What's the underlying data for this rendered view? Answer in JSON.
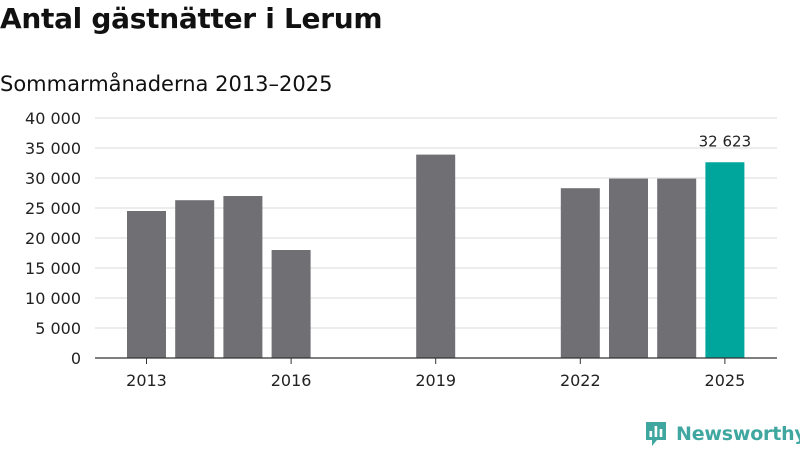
{
  "header": {
    "title": "Antal gästnätter i Lerum",
    "subtitle": "Sommarmånaderna 2013–2025"
  },
  "brand": {
    "name": "Newsworthy",
    "icon": "newsworthy-logo-icon"
  },
  "colors": {
    "bar": "#706f74",
    "highlight": "#00a59c",
    "grid": "#d9d9d9",
    "axis": "#333333",
    "brand": "#3fa7a0"
  },
  "chart_data": {
    "type": "bar",
    "title": "Antal gästnätter i Lerum",
    "subtitle": "Sommarmånaderna 2013–2025",
    "xlabel": "",
    "ylabel": "",
    "x": [
      2013,
      2014,
      2015,
      2016,
      2017,
      2018,
      2019,
      2020,
      2021,
      2022,
      2023,
      2024,
      2025
    ],
    "values": [
      24500,
      26300,
      27000,
      18000,
      null,
      null,
      33900,
      null,
      null,
      28300,
      29900,
      29900,
      32623
    ],
    "highlight_index": 12,
    "highlight_label": "32 623",
    "ylim": [
      0,
      40000
    ],
    "y_ticks": [
      0,
      5000,
      10000,
      15000,
      20000,
      25000,
      30000,
      35000,
      40000
    ],
    "y_tick_labels": [
      "0",
      "5 000",
      "10 000",
      "15 000",
      "20 000",
      "25 000",
      "30 000",
      "35 000",
      "40 000"
    ],
    "x_tick_labels": [
      "2013",
      "2016",
      "2019",
      "2022",
      "2025"
    ],
    "x_tick_years": [
      2013,
      2016,
      2019,
      2022,
      2025
    ],
    "grid": true,
    "legend": "none"
  }
}
